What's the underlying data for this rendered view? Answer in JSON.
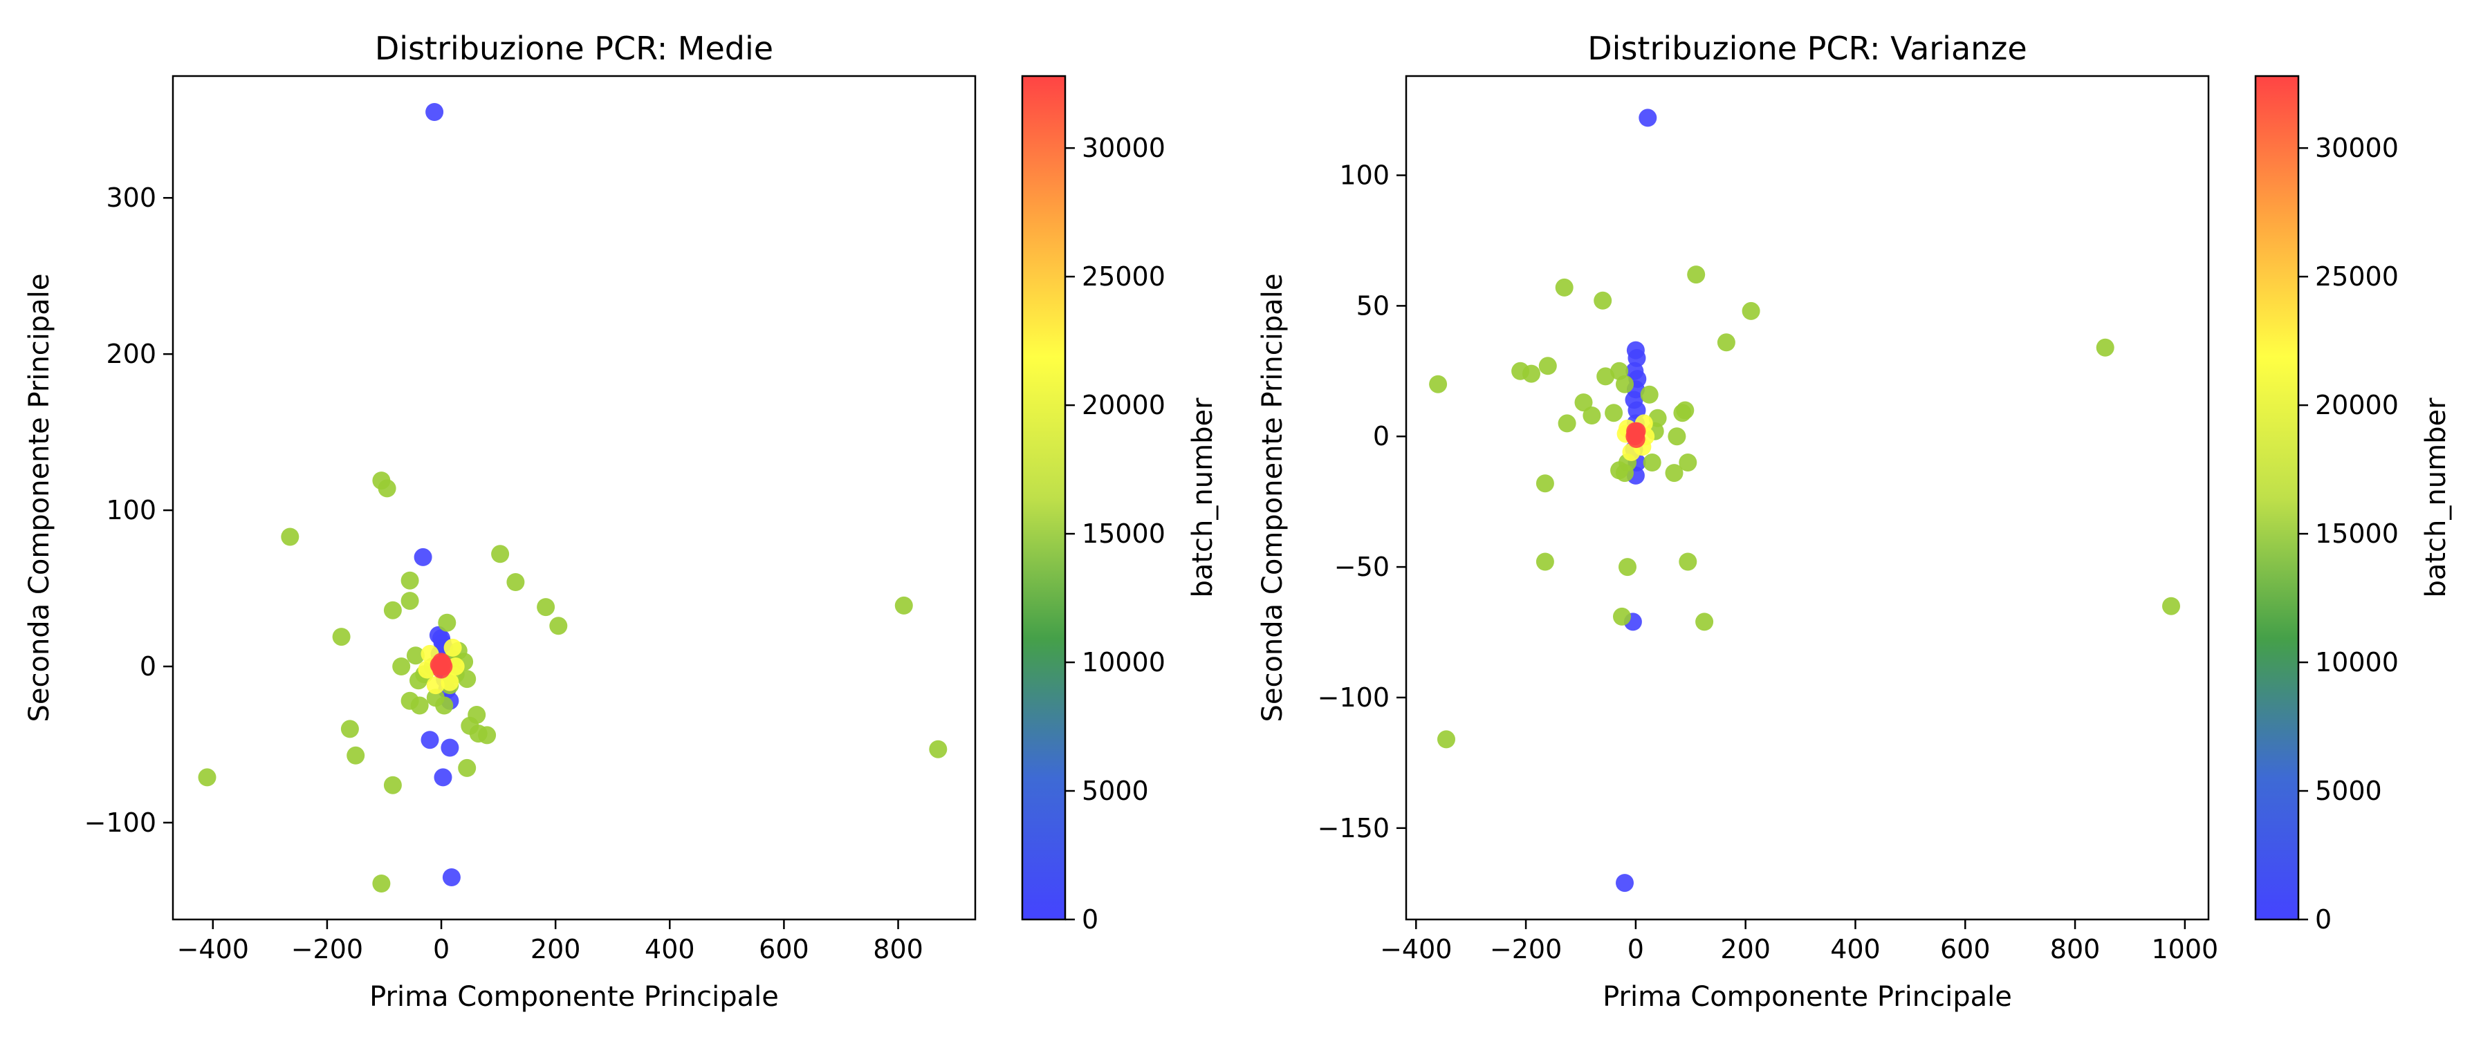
{
  "figure": {
    "background": "#ffffff"
  },
  "chart_data": [
    {
      "type": "scatter",
      "title": "Distribuzione PCR: Medie",
      "xlabel": "Prima Componente Principale",
      "ylabel": "Seconda Componente Principale",
      "xlim": [
        -470,
        935
      ],
      "ylim": [
        -162,
        378
      ],
      "xticks": [
        -400,
        -200,
        0,
        200,
        400,
        600,
        800
      ],
      "xtick_labels": [
        "−400",
        "−200",
        "0",
        "200",
        "400",
        "600",
        "800"
      ],
      "yticks": [
        -100,
        0,
        100,
        200,
        300
      ],
      "ytick_labels": [
        "−100",
        "0",
        "100",
        "200",
        "300"
      ],
      "grid": false,
      "colorbar": {
        "label": "batch_number",
        "range": [
          0,
          32800
        ],
        "ticks": [
          0,
          5000,
          10000,
          15000,
          20000,
          25000,
          30000
        ],
        "tick_labels": [
          "0",
          "5000",
          "10000",
          "15000",
          "20000",
          "25000",
          "30000"
        ],
        "colormap": [
          "#4444ff",
          "#3e6ad5",
          "#45a049",
          "#bfe04a",
          "#ffff44",
          "#ffa540",
          "#ff4444"
        ]
      },
      "series": [
        {
          "color": "#4444ff",
          "points": [
            [
              -12,
              355
            ],
            [
              -32,
              70
            ],
            [
              -5,
              20
            ],
            [
              0,
              18
            ],
            [
              2,
              15
            ],
            [
              5,
              12
            ],
            [
              3,
              10
            ],
            [
              -3,
              8
            ],
            [
              8,
              5
            ],
            [
              6,
              -8
            ],
            [
              10,
              -15
            ],
            [
              15,
              -22
            ],
            [
              -20,
              -47
            ],
            [
              15,
              -52
            ],
            [
              3,
              -71
            ],
            [
              18,
              -135
            ]
          ]
        },
        {
          "color": "#99cc33",
          "points": [
            [
              -105,
              119
            ],
            [
              -95,
              114
            ],
            [
              -265,
              83
            ],
            [
              -175,
              19
            ],
            [
              -55,
              55
            ],
            [
              -55,
              42
            ],
            [
              -85,
              36
            ],
            [
              103,
              72
            ],
            [
              130,
              54
            ],
            [
              183,
              38
            ],
            [
              205,
              26
            ],
            [
              10,
              28
            ],
            [
              -70,
              0
            ],
            [
              -45,
              7
            ],
            [
              -40,
              -9
            ],
            [
              -30,
              -5
            ],
            [
              -55,
              -22
            ],
            [
              -38,
              -25
            ],
            [
              30,
              10
            ],
            [
              40,
              3
            ],
            [
              45,
              -8
            ],
            [
              -15,
              0
            ],
            [
              20,
              5
            ],
            [
              15,
              -12
            ],
            [
              -10,
              -20
            ],
            [
              5,
              -25
            ],
            [
              25,
              -5
            ],
            [
              62,
              -31
            ],
            [
              50,
              -38
            ],
            [
              65,
              -43
            ],
            [
              80,
              -44
            ],
            [
              45,
              -65
            ],
            [
              -160,
              -40
            ],
            [
              -150,
              -57
            ],
            [
              -85,
              -76
            ],
            [
              -410,
              -71
            ],
            [
              -105,
              -139
            ],
            [
              810,
              39
            ],
            [
              870,
              -53
            ]
          ]
        },
        {
          "color": "#ffff44",
          "points": [
            [
              -20,
              8
            ],
            [
              15,
              -10
            ],
            [
              -10,
              -12
            ],
            [
              20,
              12
            ],
            [
              -25,
              -2
            ],
            [
              25,
              0
            ]
          ]
        },
        {
          "color": "#ff4444",
          "points": [
            [
              -2,
              0
            ],
            [
              2,
              2
            ],
            [
              0,
              -2
            ],
            [
              -4,
              1
            ],
            [
              4,
              0
            ],
            [
              0,
              3
            ]
          ]
        }
      ]
    },
    {
      "type": "scatter",
      "title": "Distribuzione PCR: Varianze",
      "xlabel": "Prima Componente Principale",
      "ylabel": "Seconda Componente Principale",
      "xlim": [
        -418,
        1043
      ],
      "ylim": [
        -185,
        138
      ],
      "xticks": [
        -400,
        -200,
        0,
        200,
        400,
        600,
        800,
        1000
      ],
      "xtick_labels": [
        "−400",
        "−200",
        "0",
        "200",
        "400",
        "600",
        "800",
        "1000"
      ],
      "yticks": [
        -150,
        -100,
        -50,
        0,
        50,
        100
      ],
      "ytick_labels": [
        "−150",
        "−100",
        "−50",
        "0",
        "50",
        "100"
      ],
      "grid": false,
      "colorbar": {
        "label": "batch_number",
        "range": [
          0,
          32800
        ],
        "ticks": [
          0,
          5000,
          10000,
          15000,
          20000,
          25000,
          30000
        ],
        "tick_labels": [
          "0",
          "5000",
          "10000",
          "15000",
          "20000",
          "25000",
          "30000"
        ],
        "colormap": [
          "#4444ff",
          "#3e6ad5",
          "#45a049",
          "#bfe04a",
          "#ffff44",
          "#ffa540",
          "#ff4444"
        ]
      },
      "series": [
        {
          "color": "#4444ff",
          "points": [
            [
              22,
              122
            ],
            [
              0,
              33
            ],
            [
              2,
              30
            ],
            [
              -2,
              25
            ],
            [
              3,
              22
            ],
            [
              0,
              18
            ],
            [
              -3,
              14
            ],
            [
              2,
              10
            ],
            [
              0,
              5
            ],
            [
              -3,
              -5
            ],
            [
              2,
              -10
            ],
            [
              0,
              -15
            ],
            [
              -5,
              -71
            ],
            [
              -20,
              -171
            ]
          ]
        },
        {
          "color": "#99cc33",
          "points": [
            [
              -360,
              20
            ],
            [
              -210,
              25
            ],
            [
              -190,
              24
            ],
            [
              -160,
              27
            ],
            [
              -130,
              57
            ],
            [
              -125,
              5
            ],
            [
              -95,
              13
            ],
            [
              -80,
              8
            ],
            [
              -60,
              52
            ],
            [
              -55,
              23
            ],
            [
              -40,
              9
            ],
            [
              -30,
              25
            ],
            [
              -20,
              20
            ],
            [
              25,
              16
            ],
            [
              35,
              2
            ],
            [
              40,
              7
            ],
            [
              -15,
              -10
            ],
            [
              -30,
              -13
            ],
            [
              -20,
              -14
            ],
            [
              30,
              -10
            ],
            [
              70,
              -14
            ],
            [
              75,
              0
            ],
            [
              85,
              9
            ],
            [
              90,
              10
            ],
            [
              95,
              -10
            ],
            [
              110,
              62
            ],
            [
              165,
              36
            ],
            [
              210,
              48
            ],
            [
              -165,
              -18
            ],
            [
              -165,
              -48
            ],
            [
              -15,
              -50
            ],
            [
              -25,
              -69
            ],
            [
              95,
              -48
            ],
            [
              125,
              -71
            ],
            [
              -345,
              -116
            ],
            [
              855,
              34
            ],
            [
              975,
              -65
            ]
          ]
        },
        {
          "color": "#ffff44",
          "points": [
            [
              -15,
              3
            ],
            [
              12,
              -4
            ],
            [
              -8,
              -6
            ],
            [
              15,
              5
            ],
            [
              18,
              0
            ],
            [
              -18,
              1
            ]
          ]
        },
        {
          "color": "#ff4444",
          "points": [
            [
              0,
              1
            ],
            [
              2,
              2
            ],
            [
              -2,
              0
            ],
            [
              1,
              -1
            ],
            [
              -1,
              2
            ]
          ]
        }
      ]
    }
  ]
}
